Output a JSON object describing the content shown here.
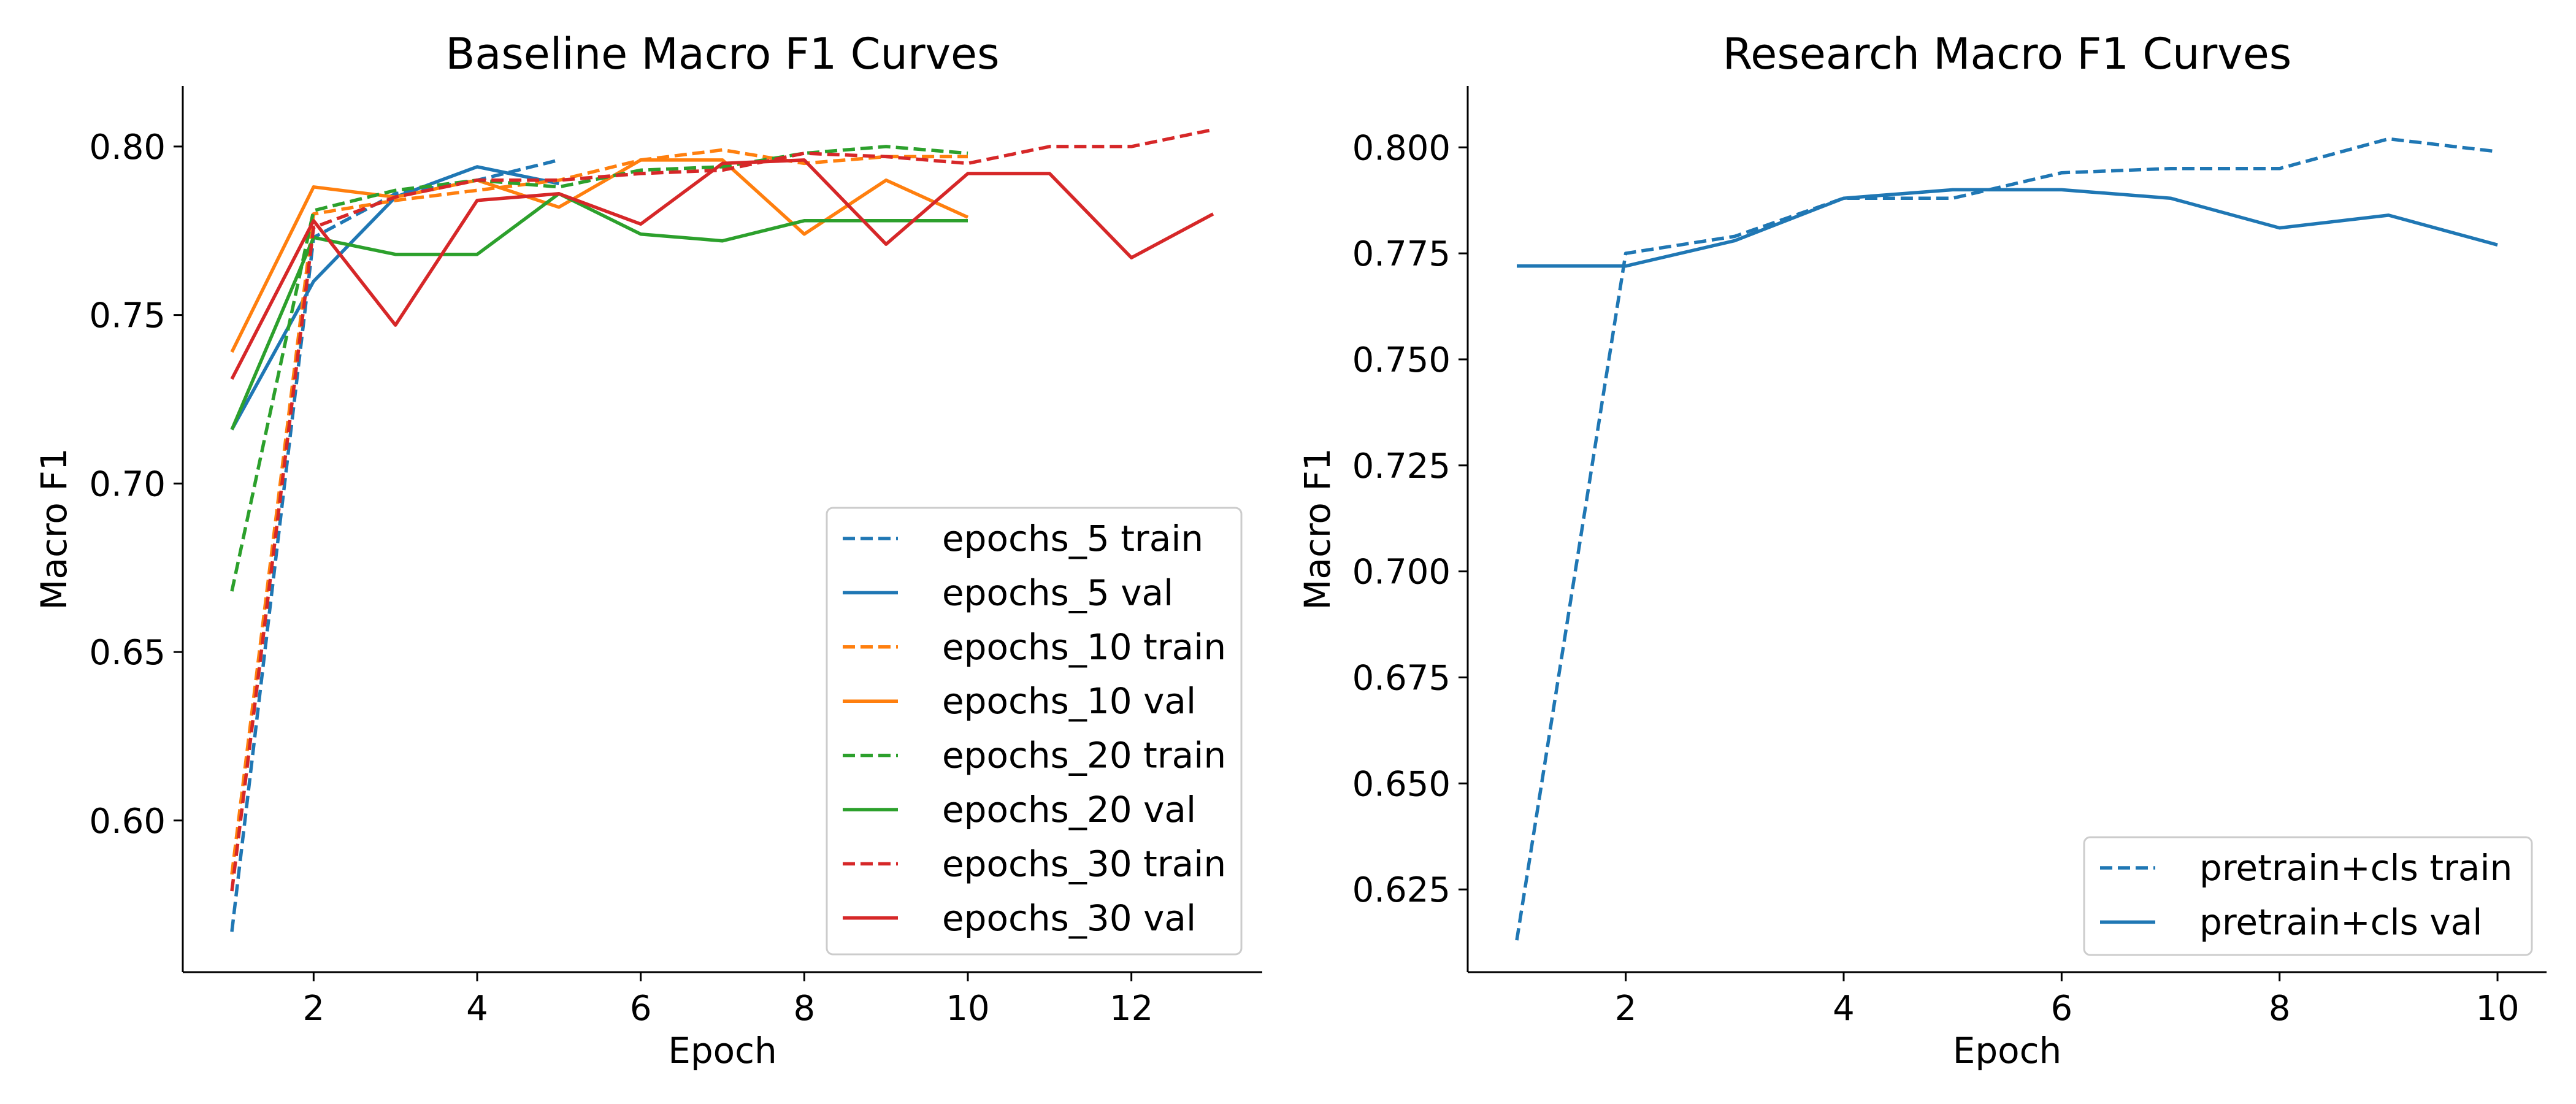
{
  "chart_data": [
    {
      "type": "line",
      "title": "Baseline Macro F1 Curves",
      "xlabel": "Epoch",
      "ylabel": "Macro F1",
      "xlim": [
        0.4,
        13.6
      ],
      "ylim": [
        0.555,
        0.818
      ],
      "xticks": [
        2,
        4,
        6,
        8,
        10,
        12
      ],
      "yticks": [
        0.6,
        0.65,
        0.7,
        0.75,
        0.8
      ],
      "ytick_labels": [
        "0.60",
        "0.65",
        "0.70",
        "0.75",
        "0.80"
      ],
      "legend_position": "lower-right",
      "grid": false,
      "series": [
        {
          "name": "epochs_5 train",
          "color": "#1f77b4",
          "dash": true,
          "x": [
            1,
            2,
            3,
            4,
            5
          ],
          "y": [
            0.567,
            0.773,
            0.786,
            0.79,
            0.796
          ]
        },
        {
          "name": "epochs_5 val",
          "color": "#1f77b4",
          "dash": false,
          "x": [
            1,
            2,
            3,
            4,
            5
          ],
          "y": [
            0.716,
            0.76,
            0.785,
            0.794,
            0.789
          ]
        },
        {
          "name": "epochs_10 train",
          "color": "#ff7f0e",
          "dash": true,
          "x": [
            1,
            2,
            3,
            4,
            5,
            6,
            7,
            8,
            9,
            10
          ],
          "y": [
            0.584,
            0.78,
            0.784,
            0.787,
            0.79,
            0.796,
            0.799,
            0.795,
            0.797,
            0.797
          ]
        },
        {
          "name": "epochs_10 val",
          "color": "#ff7f0e",
          "dash": false,
          "x": [
            1,
            2,
            3,
            4,
            5,
            6,
            7,
            8,
            9,
            10
          ],
          "y": [
            0.739,
            0.788,
            0.785,
            0.79,
            0.782,
            0.796,
            0.796,
            0.774,
            0.79,
            0.779
          ]
        },
        {
          "name": "epochs_20 train",
          "color": "#2ca02c",
          "dash": true,
          "x": [
            1,
            2,
            3,
            4,
            5,
            6,
            7,
            8,
            9,
            10
          ],
          "y": [
            0.668,
            0.781,
            0.787,
            0.79,
            0.788,
            0.793,
            0.794,
            0.798,
            0.8,
            0.798
          ]
        },
        {
          "name": "epochs_20 val",
          "color": "#2ca02c",
          "dash": false,
          "x": [
            1,
            2,
            3,
            4,
            5,
            6,
            7,
            8,
            9,
            10
          ],
          "y": [
            0.716,
            0.773,
            0.768,
            0.768,
            0.786,
            0.774,
            0.772,
            0.778,
            0.778,
            0.778
          ]
        },
        {
          "name": "epochs_30 train",
          "color": "#d62728",
          "dash": true,
          "x": [
            1,
            2,
            3,
            4,
            5,
            6,
            7,
            8,
            9,
            10,
            11,
            12,
            13
          ],
          "y": [
            0.579,
            0.776,
            0.785,
            0.79,
            0.79,
            0.792,
            0.793,
            0.798,
            0.797,
            0.795,
            0.8,
            0.8,
            0.805
          ]
        },
        {
          "name": "epochs_30 val",
          "color": "#d62728",
          "dash": false,
          "x": [
            1,
            2,
            3,
            4,
            5,
            6,
            7,
            8,
            9,
            10,
            11,
            12,
            13
          ],
          "y": [
            0.731,
            0.778,
            0.747,
            0.784,
            0.786,
            0.777,
            0.795,
            0.796,
            0.771,
            0.792,
            0.792,
            0.767,
            0.78
          ]
        }
      ]
    },
    {
      "type": "line",
      "title": "Research Macro F1 Curves",
      "xlabel": "Epoch",
      "ylabel": "Macro F1",
      "xlim": [
        0.55,
        10.45
      ],
      "ylim": [
        0.6055,
        0.8145
      ],
      "xticks": [
        2,
        4,
        6,
        8,
        10
      ],
      "yticks": [
        0.625,
        0.65,
        0.675,
        0.7,
        0.725,
        0.75,
        0.775,
        0.8
      ],
      "ytick_labels": [
        "0.625",
        "0.650",
        "0.675",
        "0.700",
        "0.725",
        "0.750",
        "0.775",
        "0.800"
      ],
      "legend_position": "lower-right",
      "grid": false,
      "series": [
        {
          "name": "pretrain+cls train",
          "color": "#1f77b4",
          "dash": true,
          "x": [
            1,
            2,
            3,
            4,
            5,
            6,
            7,
            8,
            9,
            10
          ],
          "y": [
            0.613,
            0.775,
            0.779,
            0.788,
            0.788,
            0.794,
            0.795,
            0.795,
            0.802,
            0.799
          ]
        },
        {
          "name": "pretrain+cls val",
          "color": "#1f77b4",
          "dash": false,
          "x": [
            1,
            2,
            3,
            4,
            5,
            6,
            7,
            8,
            9,
            10
          ],
          "y": [
            0.772,
            0.772,
            0.778,
            0.788,
            0.79,
            0.79,
            0.788,
            0.781,
            0.784,
            0.777
          ]
        }
      ]
    }
  ]
}
